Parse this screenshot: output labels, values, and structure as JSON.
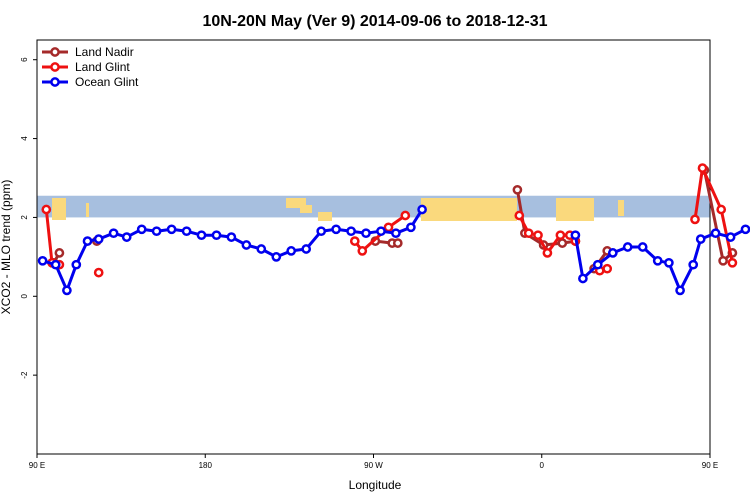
{
  "chart_data": {
    "type": "line",
    "title": "10N-20N May (Ver 9)   2014-09-06 to 2018-12-31",
    "xlabel": "Longitude",
    "ylabel": "XCO2 - MLO trend (ppm)",
    "xlim": [
      90,
      450
    ],
    "ylim": [
      -4,
      6.5
    ],
    "x_ticks": [
      {
        "value": 90,
        "label": "90 E"
      },
      {
        "value": 180,
        "label": "180"
      },
      {
        "value": 270,
        "label": "90 W"
      },
      {
        "value": 360,
        "label": "0"
      },
      {
        "value": 450,
        "label": "90 E"
      },
      {
        "value": 540,
        "label": "180"
      }
    ],
    "y_ticks": [
      {
        "value": -2,
        "label": "-2"
      },
      {
        "value": 0,
        "label": "0"
      },
      {
        "value": 2,
        "label": "2"
      },
      {
        "value": 4,
        "label": "4"
      },
      {
        "value": 6,
        "label": "6"
      }
    ],
    "band": {
      "y_range": [
        2.0,
        2.55
      ],
      "ocean_color": "#a7bfdf",
      "land_color": "#fad97d"
    },
    "legend_position": "top-left",
    "series": [
      {
        "name": "Land Nadir",
        "color": "#a52a2a",
        "segments": [
          [
            [
              99,
              0.85
            ],
            [
              102,
              1.1
            ]
          ],
          [
            [
              122,
              1.4
            ]
          ],
          [
            [
              271,
              1.4
            ],
            [
              280,
              1.35
            ],
            [
              283,
              1.35
            ]
          ],
          [
            [
              347,
              2.7
            ],
            [
              351,
              1.6
            ],
            [
              361,
              1.3
            ],
            [
              371,
              1.35
            ],
            [
              378,
              1.4
            ]
          ],
          [
            [
              388,
              0.7
            ],
            [
              395,
              1.15
            ]
          ],
          [
            [
              447,
              3.2
            ],
            [
              457,
              0.9
            ],
            [
              462,
              1.1
            ]
          ],
          [
            [
              476,
              1.4
            ]
          ]
        ]
      },
      {
        "name": "Land Glint",
        "color": "#ee1111",
        "segments": [
          [
            [
              95,
              2.2
            ],
            [
              98,
              0.85
            ],
            [
              102,
              0.8
            ]
          ],
          [
            [
              123,
              0.6
            ]
          ],
          [
            [
              260,
              1.4
            ],
            [
              264,
              1.15
            ],
            [
              278,
              1.75
            ],
            [
              287,
              2.05
            ]
          ],
          [
            [
              348,
              2.05
            ],
            [
              353,
              1.6
            ],
            [
              358,
              1.55
            ],
            [
              363,
              1.1
            ],
            [
              370,
              1.55
            ],
            [
              375,
              1.55
            ],
            [
              378,
              1.4
            ]
          ],
          [
            [
              391,
              0.65
            ],
            [
              395,
              0.7
            ]
          ],
          [
            [
              442,
              1.95
            ],
            [
              446,
              3.25
            ],
            [
              456,
              2.2
            ],
            [
              462,
              0.85
            ]
          ],
          [
            [
              477,
              0.6
            ]
          ]
        ]
      },
      {
        "name": "Ocean Glint",
        "color": "#0000ee",
        "segments": [
          [
            [
              93,
              0.9
            ],
            [
              100,
              0.8
            ],
            [
              106,
              0.15
            ],
            [
              111,
              0.8
            ],
            [
              117,
              1.4
            ],
            [
              123,
              1.45
            ],
            [
              131,
              1.6
            ],
            [
              138,
              1.5
            ],
            [
              146,
              1.7
            ],
            [
              154,
              1.65
            ],
            [
              162,
              1.7
            ],
            [
              170,
              1.65
            ],
            [
              178,
              1.55
            ],
            [
              186,
              1.55
            ],
            [
              194,
              1.5
            ],
            [
              202,
              1.3
            ],
            [
              210,
              1.2
            ],
            [
              218,
              1.0
            ],
            [
              226,
              1.15
            ],
            [
              234,
              1.2
            ],
            [
              242,
              1.65
            ],
            [
              250,
              1.7
            ],
            [
              258,
              1.65
            ],
            [
              266,
              1.6
            ],
            [
              274,
              1.65
            ],
            [
              282,
              1.6
            ],
            [
              290,
              1.75
            ],
            [
              296,
              2.2
            ]
          ],
          [
            [
              378,
              1.55
            ],
            [
              382,
              0.45
            ],
            [
              390,
              0.8
            ],
            [
              398,
              1.1
            ],
            [
              406,
              1.25
            ],
            [
              414,
              1.25
            ],
            [
              422,
              0.9
            ],
            [
              428,
              0.85
            ],
            [
              434,
              0.15
            ],
            [
              441,
              0.8
            ],
            [
              445,
              1.45
            ],
            [
              453,
              1.6
            ],
            [
              461,
              1.5
            ],
            [
              469,
              1.7
            ],
            [
              477,
              1.65
            ],
            [
              484,
              1.75
            ]
          ]
        ]
      }
    ]
  }
}
